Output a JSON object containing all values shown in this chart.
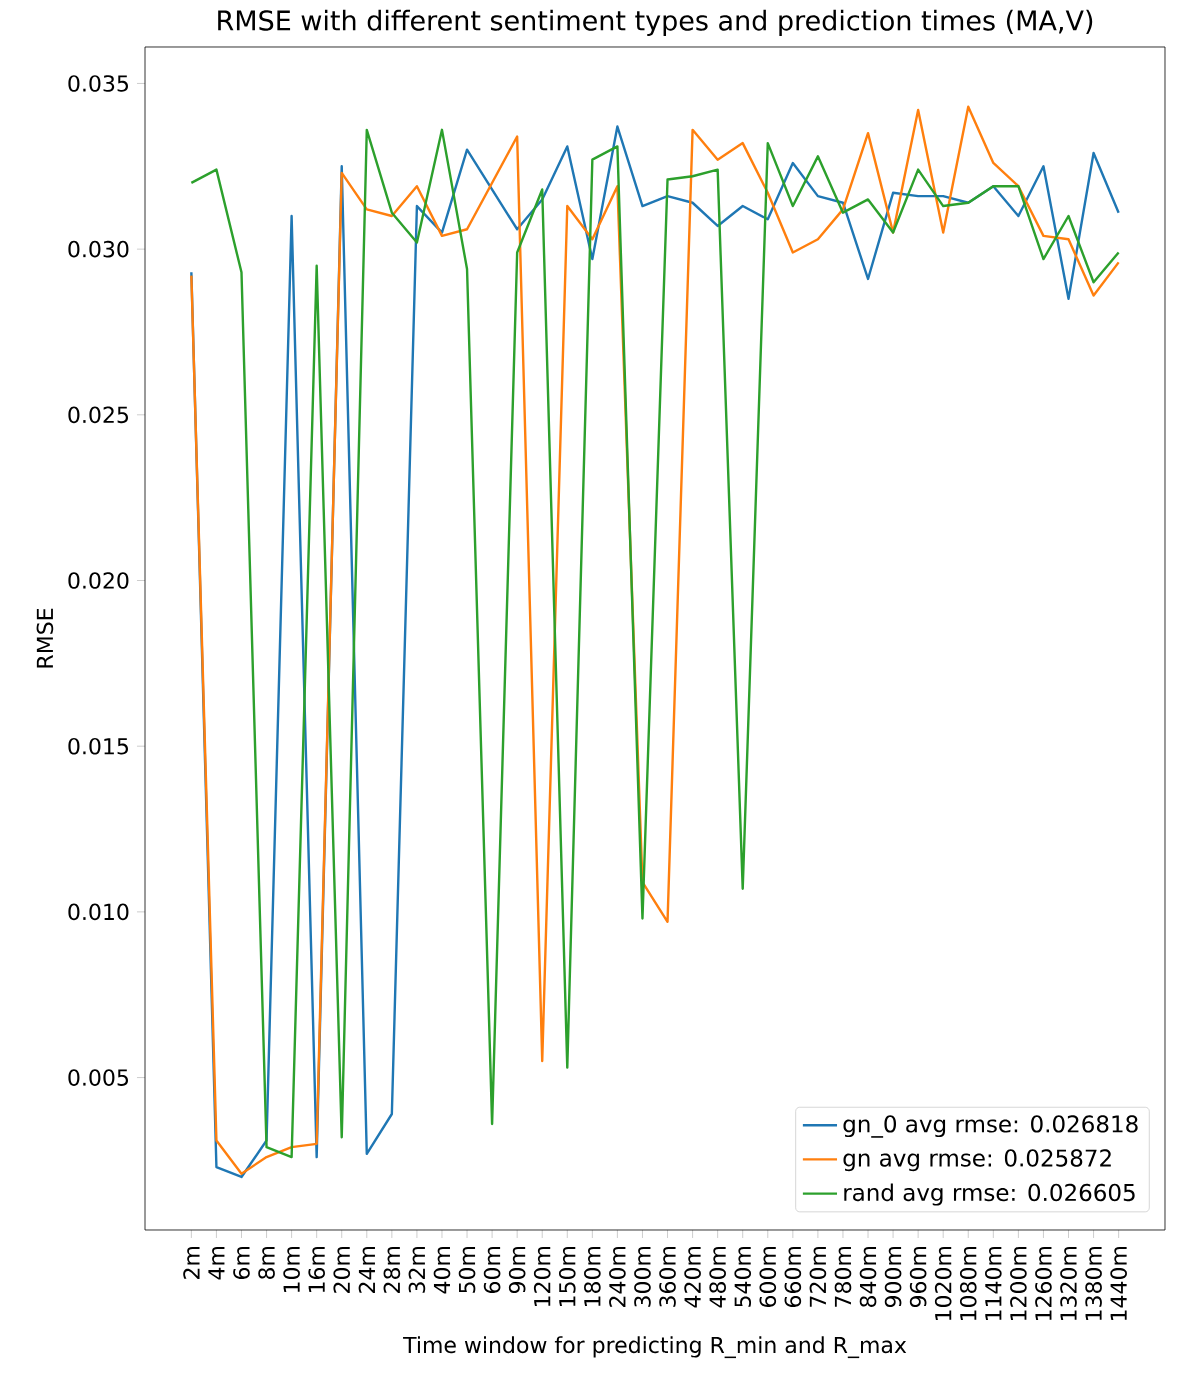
{
  "chart_data": {
    "type": "line",
    "title": "RMSE with different sentiment types and prediction times (MA,V)",
    "xlabel": "Time window for predicting R_min and R_max",
    "ylabel": "RMSE",
    "categories": [
      "2m",
      "4m",
      "6m",
      "8m",
      "10m",
      "16m",
      "20m",
      "24m",
      "28m",
      "32m",
      "40m",
      "50m",
      "60m",
      "90m",
      "120m",
      "150m",
      "180m",
      "240m",
      "300m",
      "360m",
      "420m",
      "480m",
      "540m",
      "600m",
      "660m",
      "720m",
      "780m",
      "840m",
      "900m",
      "960m",
      "1020m",
      "1080m",
      "1140m",
      "1200m",
      "1260m",
      "1320m",
      "1380m",
      "1440m"
    ],
    "series": [
      {
        "name": "gn_0 avg rmse: 0.026818",
        "color": "#1f77b4",
        "values": [
          0.0293,
          0.0023,
          0.002,
          0.0031,
          0.031,
          0.0026,
          0.0325,
          0.0027,
          0.0039,
          0.0313,
          0.0305,
          0.033,
          0.0318,
          0.0306,
          0.0315,
          0.0331,
          0.0297,
          0.0337,
          0.0313,
          0.0316,
          0.0314,
          0.0307,
          0.0313,
          0.0309,
          0.0326,
          0.0316,
          0.0314,
          0.0291,
          0.0317,
          0.0316,
          0.0316,
          0.0314,
          0.0319,
          0.031,
          0.0325,
          0.0285,
          0.0329,
          0.0311
        ]
      },
      {
        "name": "gn avg rmse: 0.025872",
        "color": "#ff7f0e",
        "values": [
          0.0292,
          0.0031,
          0.0021,
          0.0026,
          0.0029,
          0.003,
          0.0323,
          0.0312,
          0.031,
          0.0319,
          0.0304,
          0.0306,
          0.032,
          0.0334,
          0.0055,
          0.0313,
          0.0303,
          0.0319,
          0.0109,
          0.0097,
          0.0336,
          0.0327,
          0.0332,
          0.0317,
          0.0299,
          0.0303,
          0.0312,
          0.0335,
          0.0305,
          0.0342,
          0.0305,
          0.0343,
          0.0326,
          0.0319,
          0.0304,
          0.0303,
          0.0286,
          0.0296
        ]
      },
      {
        "name": "rand avg rmse: 0.026605",
        "color": "#2ca02c",
        "values": [
          0.032,
          0.0324,
          0.0293,
          0.0029,
          0.0026,
          0.0295,
          0.0032,
          0.0336,
          0.0311,
          0.0302,
          0.0336,
          0.0294,
          0.0036,
          0.0299,
          0.0318,
          0.0053,
          0.0327,
          0.0331,
          0.0098,
          0.0321,
          0.0322,
          0.0324,
          0.0107,
          0.0332,
          0.0313,
          0.0328,
          0.0311,
          0.0315,
          0.0305,
          0.0324,
          0.0313,
          0.0314,
          0.0319,
          0.0319,
          0.0297,
          0.031,
          0.029,
          0.0299
        ]
      }
    ],
    "ylim": [
      0.0004,
      0.0361
    ],
    "yticks": [
      {
        "value": 0.005,
        "label": "0.005"
      },
      {
        "value": 0.01,
        "label": "0.010"
      },
      {
        "value": 0.015,
        "label": "0.015"
      },
      {
        "value": 0.02,
        "label": "0.020"
      },
      {
        "value": 0.025,
        "label": "0.025"
      },
      {
        "value": 0.03,
        "label": "0.030"
      },
      {
        "value": 0.035,
        "label": "0.035"
      }
    ],
    "legend": "bottom right",
    "grid": false,
    "marker": "none",
    "line_style": "solid"
  }
}
